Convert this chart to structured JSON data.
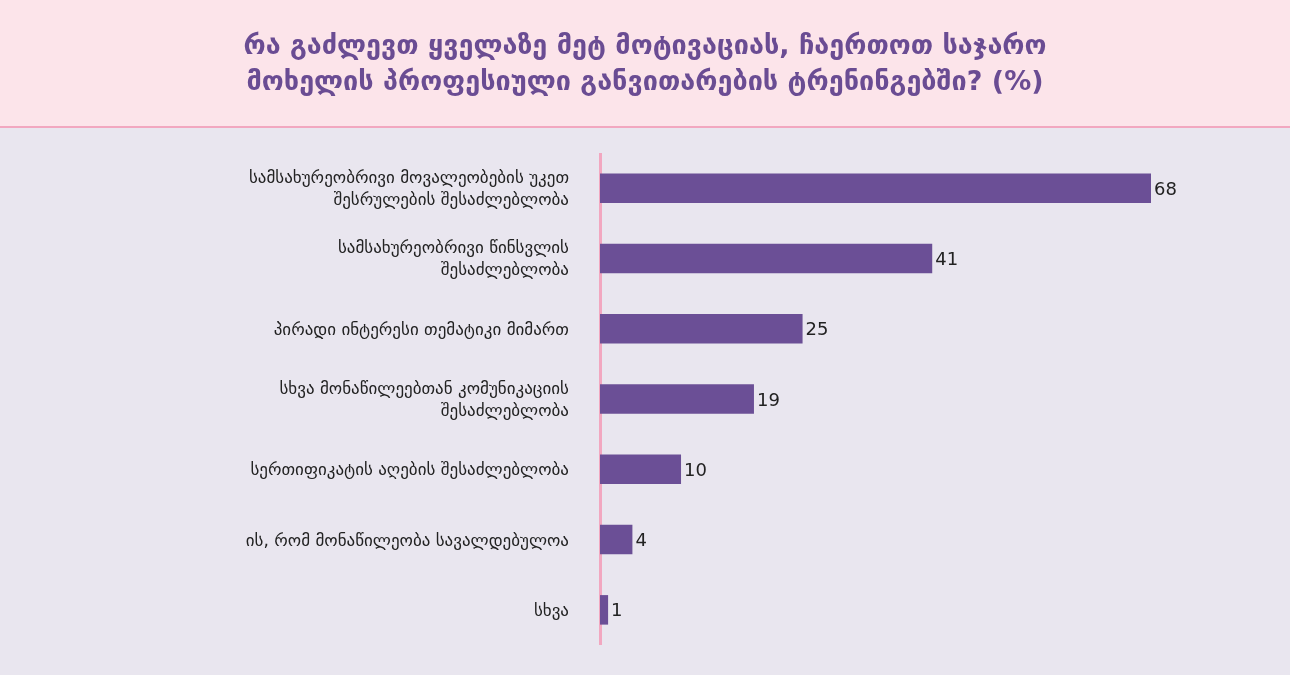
{
  "chart_data": {
    "type": "bar",
    "orientation": "horizontal",
    "title": "რა გაძლევთ ყველაზე მეტ მოტივაციას, ჩაერთოთ საჯარო\nმოხელის პროფესიული განვითარების ტრენინგებში? (%)",
    "categories": [
      "სამსახურეობრივი მოვალეობების უკეთ\nშესრულების შესაძლებლობა",
      "სამსახურეობრივი წინსვლის\nშესაძლებლობა",
      "პირადი ინტერესი თემატიკი მიმართ",
      "სხვა მონაწილეებთან კომუნიკაციის\nშესაძლებლობა",
      "სერთიფიკატის აღების შესაძლებლობა",
      "ის, რომ მონაწილეობა სავალდებულოა",
      "სხვა"
    ],
    "values": [
      68,
      41,
      25,
      19,
      10,
      4,
      1
    ],
    "color": "#6b4f96",
    "data_labels": true
  }
}
